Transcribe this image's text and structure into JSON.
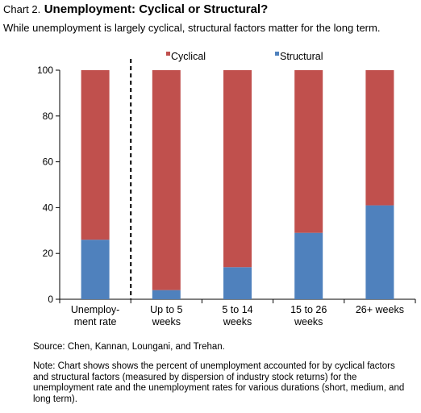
{
  "header": {
    "prefix": "Chart 2.",
    "title": "Unemployment: Cyclical or Structural?",
    "subtitle": "While unemployment is largely cyclical, structural factors matter for the long term."
  },
  "chart_data": {
    "type": "bar",
    "stacked": true,
    "categories": [
      [
        "Unemploy-",
        "ment rate"
      ],
      [
        "Up to 5",
        "weeks"
      ],
      [
        "5 to 14",
        "weeks"
      ],
      [
        "15 to 26",
        "weeks"
      ],
      [
        "26+ weeks"
      ]
    ],
    "series": [
      {
        "name": "Structural",
        "color": "#4f81bd",
        "values": [
          26,
          4,
          14,
          29,
          41
        ]
      },
      {
        "name": "Cyclical",
        "color": "#c0504d",
        "values": [
          74,
          96,
          86,
          71,
          59
        ]
      }
    ],
    "ylim": [
      0,
      100
    ],
    "yticks": [
      0,
      20,
      40,
      60,
      80,
      100
    ],
    "grid": false,
    "legend": "top",
    "separator_after_category": 0
  },
  "footer": {
    "source": "Source: Chen, Kannan, Loungani, and Trehan.",
    "note": "Note: Chart shows shows the percent of unemployment accounted for by cyclical factors and structural factors (measured by dispersion of industry stock returns) for the unemployment rate and the unemployment rates for various durations (short, medium, and long term)."
  }
}
